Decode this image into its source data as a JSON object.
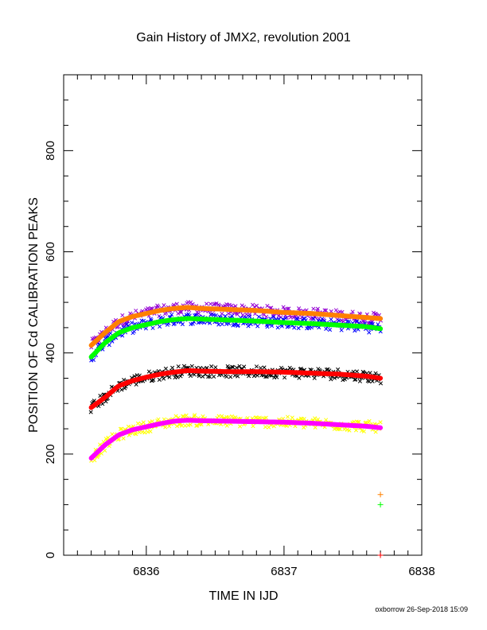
{
  "chart_data": {
    "type": "scatter",
    "title": "Gain History of JMX2, revolution 2001",
    "xlabel": "TIME IN IJD",
    "ylabel": "POSITION OF Cd CALIBRATION PEAKS",
    "xlim": [
      6835.4,
      6838.0
    ],
    "ylim": [
      0,
      950
    ],
    "x_ticks": [
      "6836",
      "6837",
      "6838"
    ],
    "y_ticks": [
      "0",
      "200",
      "400",
      "600",
      "800"
    ],
    "grid": false,
    "legend": "none",
    "series": [
      {
        "role": "raw",
        "color": "#9400d3",
        "marker": "x",
        "x_start": 6835.6,
        "x_end": 6837.7,
        "curve_x": [
          6835.6,
          6835.7,
          6835.8,
          6835.9,
          6836.0,
          6836.1,
          6836.2,
          6836.3,
          6836.4,
          6836.6,
          6836.8,
          6837.0,
          6837.2,
          6837.4,
          6837.6,
          6837.7
        ],
        "curve_y": [
          415,
          440,
          462,
          472,
          478,
          484,
          488,
          490,
          488,
          486,
          484,
          480,
          478,
          474,
          470,
          468
        ]
      },
      {
        "role": "raw",
        "color": "#0000ff",
        "marker": "x",
        "x_start": 6835.6,
        "x_end": 6837.7,
        "curve_x": [
          6835.6,
          6835.7,
          6835.8,
          6835.9,
          6836.0,
          6836.1,
          6836.2,
          6836.3,
          6836.4,
          6836.6,
          6836.8,
          6837.0,
          6837.2,
          6837.4,
          6837.6,
          6837.7
        ],
        "curve_y": [
          392,
          420,
          440,
          450,
          456,
          462,
          466,
          468,
          467,
          465,
          463,
          460,
          458,
          455,
          452,
          448
        ]
      },
      {
        "role": "raw",
        "color": "#000000",
        "marker": "x",
        "x_start": 6835.6,
        "x_end": 6837.7,
        "curve_x": [
          6835.6,
          6835.7,
          6835.8,
          6835.9,
          6836.0,
          6836.1,
          6836.2,
          6836.3,
          6836.4,
          6836.6,
          6836.8,
          6837.0,
          6837.2,
          6837.4,
          6837.6,
          6837.7
        ],
        "curve_y": [
          292,
          312,
          335,
          345,
          352,
          358,
          362,
          365,
          364,
          363,
          363,
          362,
          360,
          358,
          354,
          350
        ]
      },
      {
        "role": "raw",
        "color": "#ffff00",
        "marker": "x",
        "x_start": 6835.6,
        "x_end": 6837.7,
        "curve_x": [
          6835.6,
          6835.7,
          6835.8,
          6835.9,
          6836.0,
          6836.1,
          6836.2,
          6836.3,
          6836.4,
          6836.6,
          6836.8,
          6837.0,
          6837.2,
          6837.4,
          6837.6,
          6837.7
        ],
        "curve_y": [
          192,
          218,
          238,
          248,
          254,
          260,
          265,
          267,
          266,
          265,
          264,
          263,
          261,
          258,
          255,
          252
        ]
      },
      {
        "role": "smoothed",
        "color": "#ff8000",
        "marker": "line",
        "x": [
          6835.6,
          6835.7,
          6835.8,
          6835.9,
          6836.0,
          6836.1,
          6836.2,
          6836.3,
          6836.4,
          6836.6,
          6836.8,
          6837.0,
          6837.2,
          6837.4,
          6837.6,
          6837.7
        ],
        "y": [
          415,
          440,
          462,
          472,
          478,
          484,
          488,
          490,
          488,
          486,
          484,
          480,
          478,
          474,
          470,
          468
        ]
      },
      {
        "role": "smoothed",
        "color": "#00ff00",
        "marker": "line",
        "x": [
          6835.6,
          6835.7,
          6835.8,
          6835.9,
          6836.0,
          6836.1,
          6836.2,
          6836.3,
          6836.4,
          6836.6,
          6836.8,
          6837.0,
          6837.2,
          6837.4,
          6837.6,
          6837.7
        ],
        "y": [
          392,
          420,
          440,
          450,
          456,
          462,
          466,
          468,
          467,
          465,
          463,
          460,
          458,
          455,
          452,
          448
        ]
      },
      {
        "role": "smoothed",
        "color": "#ff0000",
        "marker": "line",
        "x": [
          6835.6,
          6835.7,
          6835.8,
          6835.9,
          6836.0,
          6836.1,
          6836.2,
          6836.3,
          6836.4,
          6836.6,
          6836.8,
          6837.0,
          6837.2,
          6837.4,
          6837.6,
          6837.7
        ],
        "y": [
          292,
          312,
          335,
          345,
          352,
          358,
          362,
          365,
          364,
          363,
          363,
          362,
          360,
          358,
          354,
          350
        ]
      },
      {
        "role": "smoothed",
        "color": "#ff00ff",
        "marker": "line",
        "x": [
          6835.6,
          6835.7,
          6835.8,
          6835.9,
          6836.0,
          6836.1,
          6836.2,
          6836.3,
          6836.4,
          6836.6,
          6836.8,
          6837.0,
          6837.2,
          6837.4,
          6837.6,
          6837.7
        ],
        "y": [
          192,
          218,
          238,
          248,
          254,
          260,
          265,
          267,
          266,
          265,
          264,
          263,
          261,
          258,
          255,
          252
        ]
      }
    ],
    "isolated_points": [
      {
        "x": 6837.7,
        "y": 120,
        "color": "#ff8000",
        "marker": "+"
      },
      {
        "x": 6837.7,
        "y": 100,
        "color": "#00ff00",
        "marker": "+"
      },
      {
        "x": 6837.7,
        "y": 0,
        "color": "#ff0000",
        "marker": "+"
      }
    ]
  },
  "footer": {
    "credit": "oxborrow 26-Sep-2018 15:09"
  }
}
